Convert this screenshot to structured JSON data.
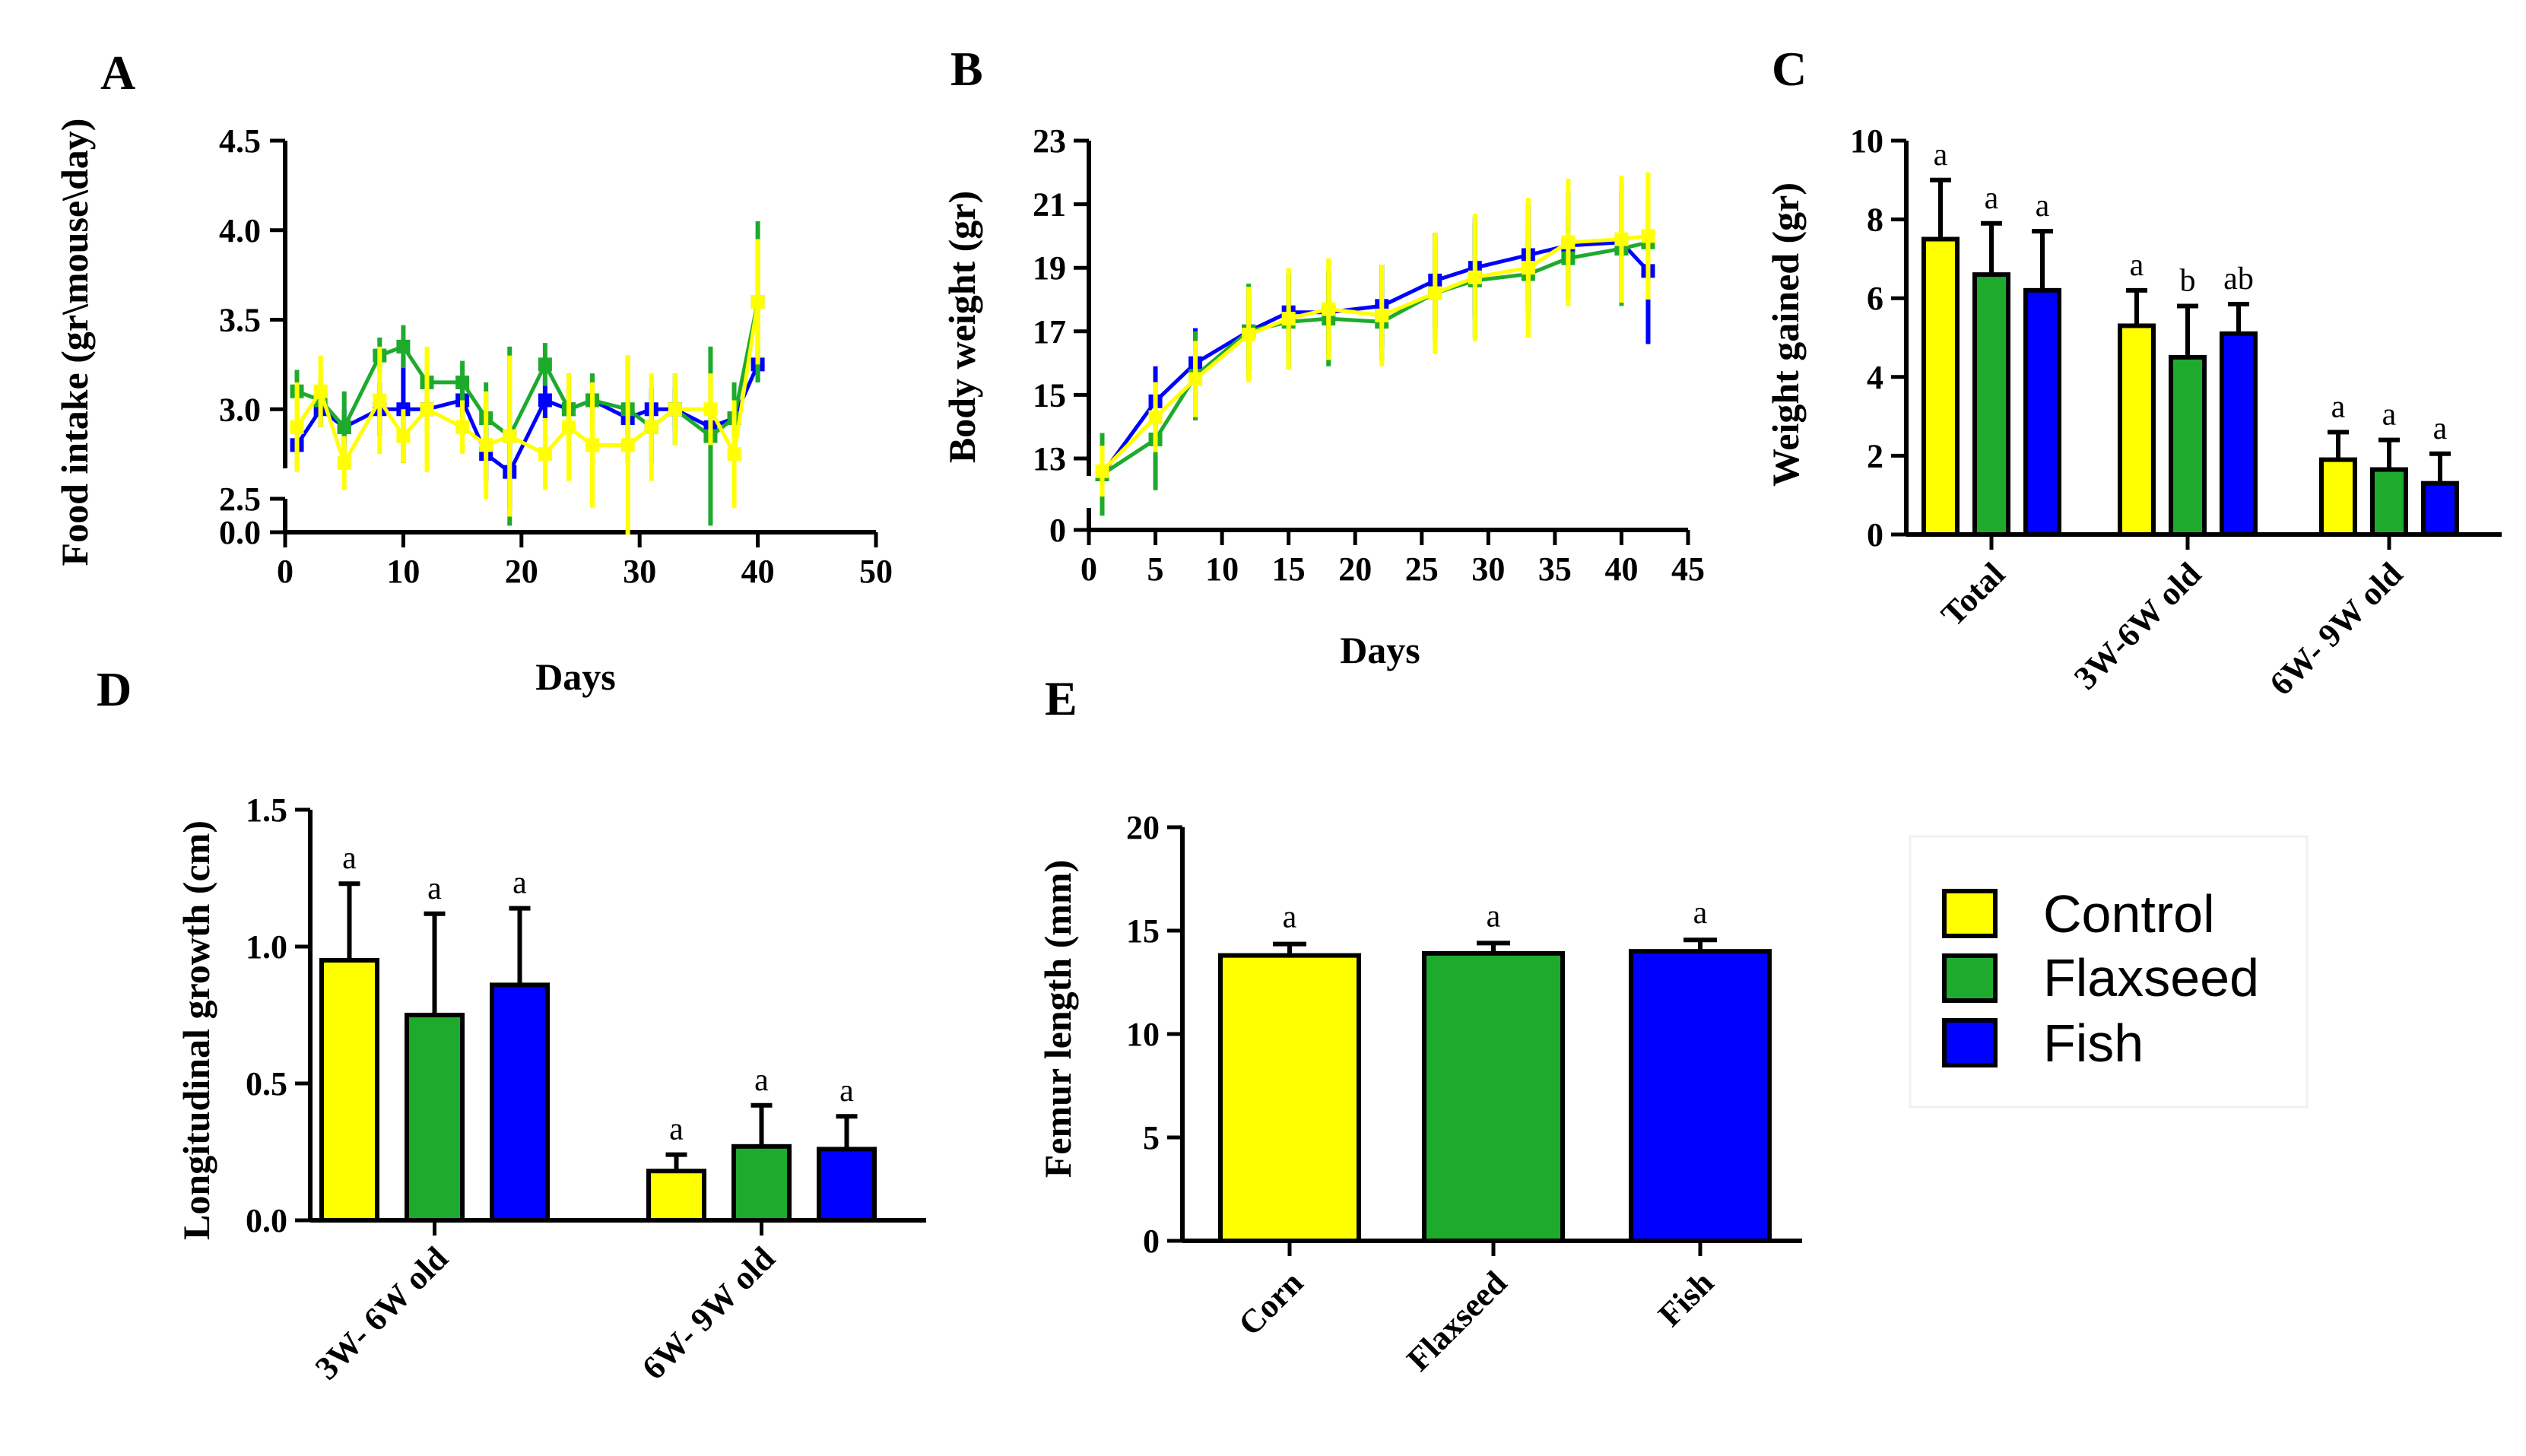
{
  "colors": {
    "Control": "#ffff00",
    "Flaxseed": "#1eaa2d",
    "Fish": "#0000ff",
    "axis": "#000000"
  },
  "legend": [
    {
      "name": "Control",
      "color": "#ffff00"
    },
    {
      "name": "Flaxseed",
      "color": "#1eaa2d"
    },
    {
      "name": "Fish",
      "color": "#0000ff"
    }
  ],
  "panels": {
    "a": "A",
    "b": "B",
    "c": "C",
    "d": "D",
    "e": "E"
  },
  "chart_data": [
    {
      "id": "A",
      "type": "line",
      "title": "",
      "xlabel": "Days",
      "ylabel": "Food intake (gr\\mouse\\day)",
      "xlim": [
        0,
        50
      ],
      "ylim": [
        0,
        4.5
      ],
      "broken_axis": true,
      "xticks": [
        "0",
        "10",
        "20",
        "30",
        "40",
        "50"
      ],
      "yticks": [
        "0.0",
        "2.5",
        "3.0",
        "3.5",
        "4.0",
        "4.5"
      ],
      "series": [
        {
          "name": "Fish",
          "x": [
            1,
            3,
            5,
            8,
            10,
            12,
            15,
            17,
            19,
            22,
            24,
            26,
            29,
            31,
            33,
            36,
            38,
            40
          ],
          "y": [
            2.8,
            3.0,
            2.9,
            3.0,
            3.0,
            3.0,
            3.05,
            2.75,
            2.65,
            3.05,
            3.0,
            3.05,
            2.95,
            3.0,
            3.0,
            2.9,
            2.95,
            3.25
          ],
          "err": [
            0.12,
            0.1,
            0.1,
            0.15,
            0.3,
            0.12,
            0.1,
            0.15,
            0.2,
            0.12,
            0.1,
            0.12,
            0.1,
            0.12,
            0.12,
            0.1,
            0.1,
            0.1
          ]
        },
        {
          "name": "Flaxseed",
          "x": [
            1,
            3,
            5,
            8,
            10,
            12,
            15,
            17,
            19,
            22,
            24,
            26,
            29,
            31,
            33,
            36,
            38,
            40
          ],
          "y": [
            3.1,
            3.05,
            2.9,
            3.3,
            3.35,
            3.15,
            3.15,
            2.95,
            2.85,
            3.25,
            3.0,
            3.05,
            3.0,
            2.9,
            3.0,
            2.85,
            2.95,
            3.6
          ],
          "err": [
            0.12,
            0.12,
            0.2,
            0.1,
            0.12,
            0.15,
            0.12,
            0.2,
            0.5,
            0.12,
            0.2,
            0.15,
            0.3,
            0.2,
            0.2,
            0.5,
            0.2,
            0.45
          ]
        },
        {
          "name": "Control",
          "x": [
            1,
            3,
            5,
            8,
            10,
            12,
            15,
            17,
            19,
            22,
            24,
            26,
            29,
            31,
            33,
            36,
            38,
            40
          ],
          "y": [
            2.9,
            3.1,
            2.7,
            3.05,
            2.85,
            3.0,
            2.9,
            2.8,
            2.85,
            2.75,
            2.9,
            2.8,
            2.8,
            2.9,
            3.0,
            3.0,
            2.75,
            3.6
          ],
          "err": [
            0.25,
            0.2,
            0.15,
            0.3,
            0.15,
            0.35,
            0.15,
            0.3,
            0.45,
            0.2,
            0.3,
            0.35,
            0.5,
            0.3,
            0.2,
            0.2,
            0.3,
            0.35
          ]
        }
      ]
    },
    {
      "id": "B",
      "type": "line",
      "title": "",
      "xlabel": "Days",
      "ylabel": "Body weight (gr)",
      "xlim": [
        0,
        45
      ],
      "ylim": [
        0,
        23
      ],
      "broken_axis": true,
      "xticks": [
        "0",
        "5",
        "10",
        "15",
        "20",
        "25",
        "30",
        "35",
        "40",
        "45"
      ],
      "yticks": [
        "0",
        "13",
        "15",
        "17",
        "19",
        "21",
        "23"
      ],
      "series": [
        {
          "name": "Fish",
          "x": [
            1,
            5,
            8,
            12,
            15,
            18,
            22,
            26,
            29,
            33,
            36,
            40,
            42
          ],
          "y": [
            12.5,
            14.8,
            16.0,
            17.0,
            17.6,
            17.6,
            17.8,
            18.6,
            19.0,
            19.4,
            19.7,
            19.8,
            18.9
          ],
          "err": [
            0.8,
            1.1,
            1.1,
            1.3,
            1.2,
            1.3,
            1.3,
            1.5,
            1.6,
            1.6,
            1.7,
            1.9,
            2.3
          ]
        },
        {
          "name": "Flaxseed",
          "x": [
            1,
            5,
            8,
            12,
            15,
            18,
            22,
            26,
            29,
            33,
            36,
            40,
            42
          ],
          "y": [
            12.5,
            13.6,
            15.6,
            17.0,
            17.3,
            17.4,
            17.3,
            18.2,
            18.6,
            18.8,
            19.3,
            19.6,
            19.8
          ],
          "err": [
            1.3,
            1.6,
            1.4,
            1.5,
            1.5,
            1.5,
            1.2,
            1.5,
            1.8,
            1.5,
            1.3,
            1.8,
            1.4
          ]
        },
        {
          "name": "Control",
          "x": [
            1,
            5,
            8,
            12,
            15,
            18,
            22,
            26,
            29,
            33,
            36,
            40,
            42
          ],
          "y": [
            12.6,
            14.3,
            15.5,
            16.9,
            17.4,
            17.7,
            17.5,
            18.2,
            18.7,
            19.0,
            19.8,
            19.9,
            20.0
          ],
          "err": [
            0.8,
            1.1,
            1.2,
            1.5,
            1.6,
            1.6,
            1.6,
            1.9,
            2.0,
            2.2,
            2.0,
            2.0,
            2.0
          ]
        }
      ]
    },
    {
      "id": "C",
      "type": "bar",
      "title": "",
      "xlabel": "",
      "ylabel": "Weight gained (gr)",
      "ylim": [
        0,
        10
      ],
      "yticks": [
        "0",
        "2",
        "4",
        "6",
        "8",
        "10"
      ],
      "categories": [
        "Total",
        "3W-6W old",
        "6W- 9W old"
      ],
      "series": [
        {
          "name": "Control",
          "values": [
            7.5,
            5.3,
            1.9
          ],
          "err": [
            1.5,
            0.9,
            0.7
          ],
          "labels": [
            "a",
            "a",
            "a"
          ]
        },
        {
          "name": "Flaxseed",
          "values": [
            6.6,
            4.5,
            1.65
          ],
          "err": [
            1.3,
            1.3,
            0.75
          ],
          "labels": [
            "a",
            "b",
            "a"
          ]
        },
        {
          "name": "Fish",
          "values": [
            6.2,
            5.1,
            1.3
          ],
          "err": [
            1.5,
            0.75,
            0.75
          ],
          "labels": [
            "a",
            "ab",
            "a"
          ]
        }
      ]
    },
    {
      "id": "D",
      "type": "bar",
      "title": "",
      "xlabel": "",
      "ylabel": "Longitudinal growth (cm)",
      "ylim": [
        0,
        1.5
      ],
      "yticks": [
        "0.0",
        "0.5",
        "1.0",
        "1.5"
      ],
      "categories": [
        "3W- 6W old",
        "6W- 9W old"
      ],
      "series": [
        {
          "name": "Control",
          "values": [
            0.95,
            0.18
          ],
          "err": [
            0.28,
            0.06
          ],
          "labels": [
            "a",
            "a"
          ]
        },
        {
          "name": "Flaxseed",
          "values": [
            0.75,
            0.27
          ],
          "err": [
            0.37,
            0.15
          ],
          "labels": [
            "a",
            "a"
          ]
        },
        {
          "name": "Fish",
          "values": [
            0.86,
            0.26
          ],
          "err": [
            0.28,
            0.12
          ],
          "labels": [
            "a",
            "a"
          ]
        }
      ]
    },
    {
      "id": "E",
      "type": "bar",
      "title": "",
      "xlabel": "",
      "ylabel": "Femur length (mm)",
      "ylim": [
        0,
        20
      ],
      "yticks": [
        "0",
        "5",
        "10",
        "15",
        "20"
      ],
      "categories": [
        "Corn",
        "Flaxseed",
        "Fish"
      ],
      "values": [
        13.8,
        13.9,
        14.0
      ],
      "err": [
        0.55,
        0.5,
        0.55
      ],
      "labels": [
        "a",
        "a",
        "a"
      ],
      "colors": [
        "#ffff00",
        "#1eaa2d",
        "#0000ff"
      ]
    }
  ]
}
